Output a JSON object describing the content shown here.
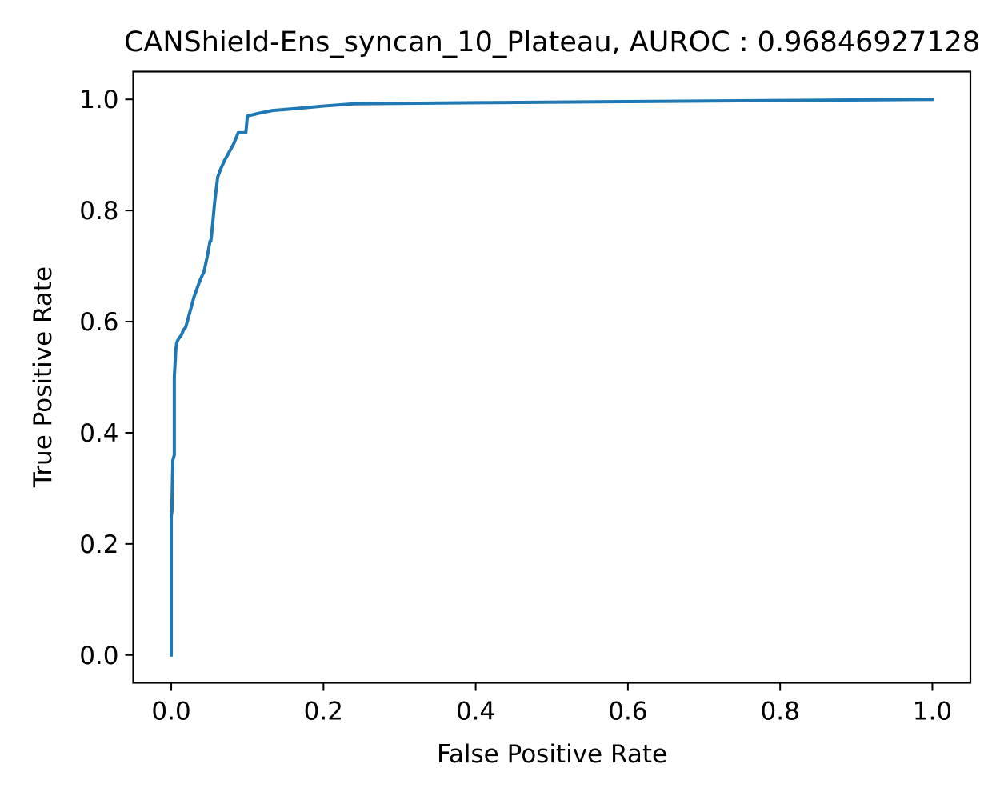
{
  "chart_data": {
    "type": "line",
    "title": "CANShield-Ens_syncan_10_Plateau, AUROC : 0.96846927128",
    "xlabel": "False Positive Rate",
    "ylabel": "True Positive Rate",
    "xlim": [
      -0.05,
      1.05
    ],
    "ylim": [
      -0.05,
      1.05
    ],
    "xticks": [
      0.0,
      0.2,
      0.4,
      0.6,
      0.8,
      1.0
    ],
    "yticks": [
      0.0,
      0.2,
      0.4,
      0.6,
      0.8,
      1.0
    ],
    "xtick_labels": [
      "0.0",
      "0.2",
      "0.4",
      "0.6",
      "0.8",
      "1.0"
    ],
    "ytick_labels": [
      "0.0",
      "0.2",
      "0.4",
      "0.6",
      "0.8",
      "1.0"
    ],
    "grid": false,
    "series": [
      {
        "color": "#1f77b4",
        "x": [
          0.0,
          0.0,
          0.001,
          0.001,
          0.002,
          0.002,
          0.004,
          0.004,
          0.006,
          0.007,
          0.008,
          0.01,
          0.013,
          0.016,
          0.019,
          0.022,
          0.026,
          0.03,
          0.034,
          0.038,
          0.043,
          0.047,
          0.051,
          0.052,
          0.054,
          0.057,
          0.061,
          0.065,
          0.07,
          0.076,
          0.082,
          0.088,
          0.094,
          0.097,
          0.098,
          0.1,
          0.115,
          0.133,
          0.16,
          0.2,
          0.24,
          0.4,
          0.6,
          0.8,
          1.0
        ],
        "y": [
          0.0,
          0.25,
          0.26,
          0.28,
          0.34,
          0.35,
          0.36,
          0.5,
          0.55,
          0.56,
          0.565,
          0.57,
          0.575,
          0.585,
          0.59,
          0.605,
          0.625,
          0.645,
          0.66,
          0.675,
          0.69,
          0.715,
          0.745,
          0.745,
          0.77,
          0.815,
          0.86,
          0.875,
          0.89,
          0.905,
          0.92,
          0.94,
          0.94,
          0.94,
          0.94,
          0.97,
          0.975,
          0.98,
          0.983,
          0.988,
          0.992,
          0.994,
          0.996,
          0.998,
          1.0
        ]
      }
    ]
  }
}
